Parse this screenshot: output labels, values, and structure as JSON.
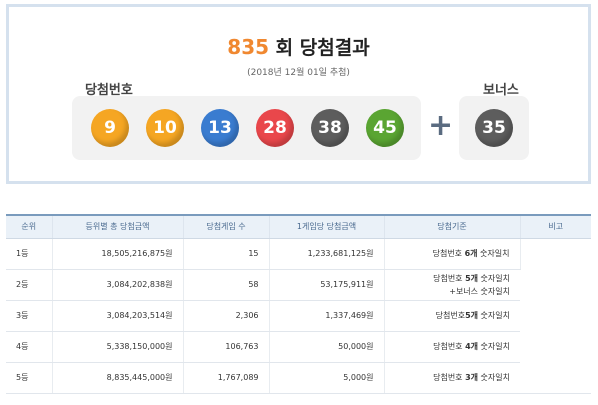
{
  "draw": {
    "round_number": "835",
    "round_suffix": "회 당첨결과",
    "date_text": "(2018년 12월 01일 추첨)",
    "winning_label": "당첨번호",
    "bonus_label": "보너스",
    "plus_symbol": "+",
    "winning_numbers": [
      {
        "value": "9",
        "color": "#f5a623"
      },
      {
        "value": "10",
        "color": "#f5a623"
      },
      {
        "value": "13",
        "color": "#3a7cd0"
      },
      {
        "value": "28",
        "color": "#e9474b"
      },
      {
        "value": "38",
        "color": "#5d5d5d"
      },
      {
        "value": "45",
        "color": "#5aa532"
      }
    ],
    "bonus_number": {
      "value": "35",
      "color": "#5d5d5d"
    }
  },
  "table": {
    "headers": [
      "순위",
      "등위별 총 당첨금액",
      "당첨게임 수",
      "1게임당 당첨금액",
      "당첨기준",
      "비고"
    ],
    "rows": [
      {
        "rank": "1등",
        "total": "18,505,216,875원",
        "winners": "15",
        "per_game": "1,233,681,125원",
        "crit_pre": "당첨번호 ",
        "crit_bold": "6개",
        "crit_post": " 숫자일치",
        "crit_line2": ""
      },
      {
        "rank": "2등",
        "total": "3,084,202,838원",
        "winners": "58",
        "per_game": "53,175,911원",
        "crit_pre": "당첨번호 ",
        "crit_bold": "5개",
        "crit_post": " 숫자일치",
        "crit_line2": "+보너스 숫자일치"
      },
      {
        "rank": "3등",
        "total": "3,084,203,514원",
        "winners": "2,306",
        "per_game": "1,337,469원",
        "crit_pre": "당첨번호",
        "crit_bold": "5개",
        "crit_post": " 숫자일치",
        "crit_line2": ""
      },
      {
        "rank": "4등",
        "total": "5,338,150,000원",
        "winners": "106,763",
        "per_game": "50,000원",
        "crit_pre": "당첨번호 ",
        "crit_bold": "4개",
        "crit_post": " 숫자일치",
        "crit_line2": ""
      },
      {
        "rank": "5등",
        "total": "8,835,445,000원",
        "winners": "1,767,089",
        "per_game": "5,000원",
        "crit_pre": "당첨번호 ",
        "crit_bold": "3개",
        "crit_post": " 숫자일치",
        "crit_line2": ""
      }
    ]
  }
}
